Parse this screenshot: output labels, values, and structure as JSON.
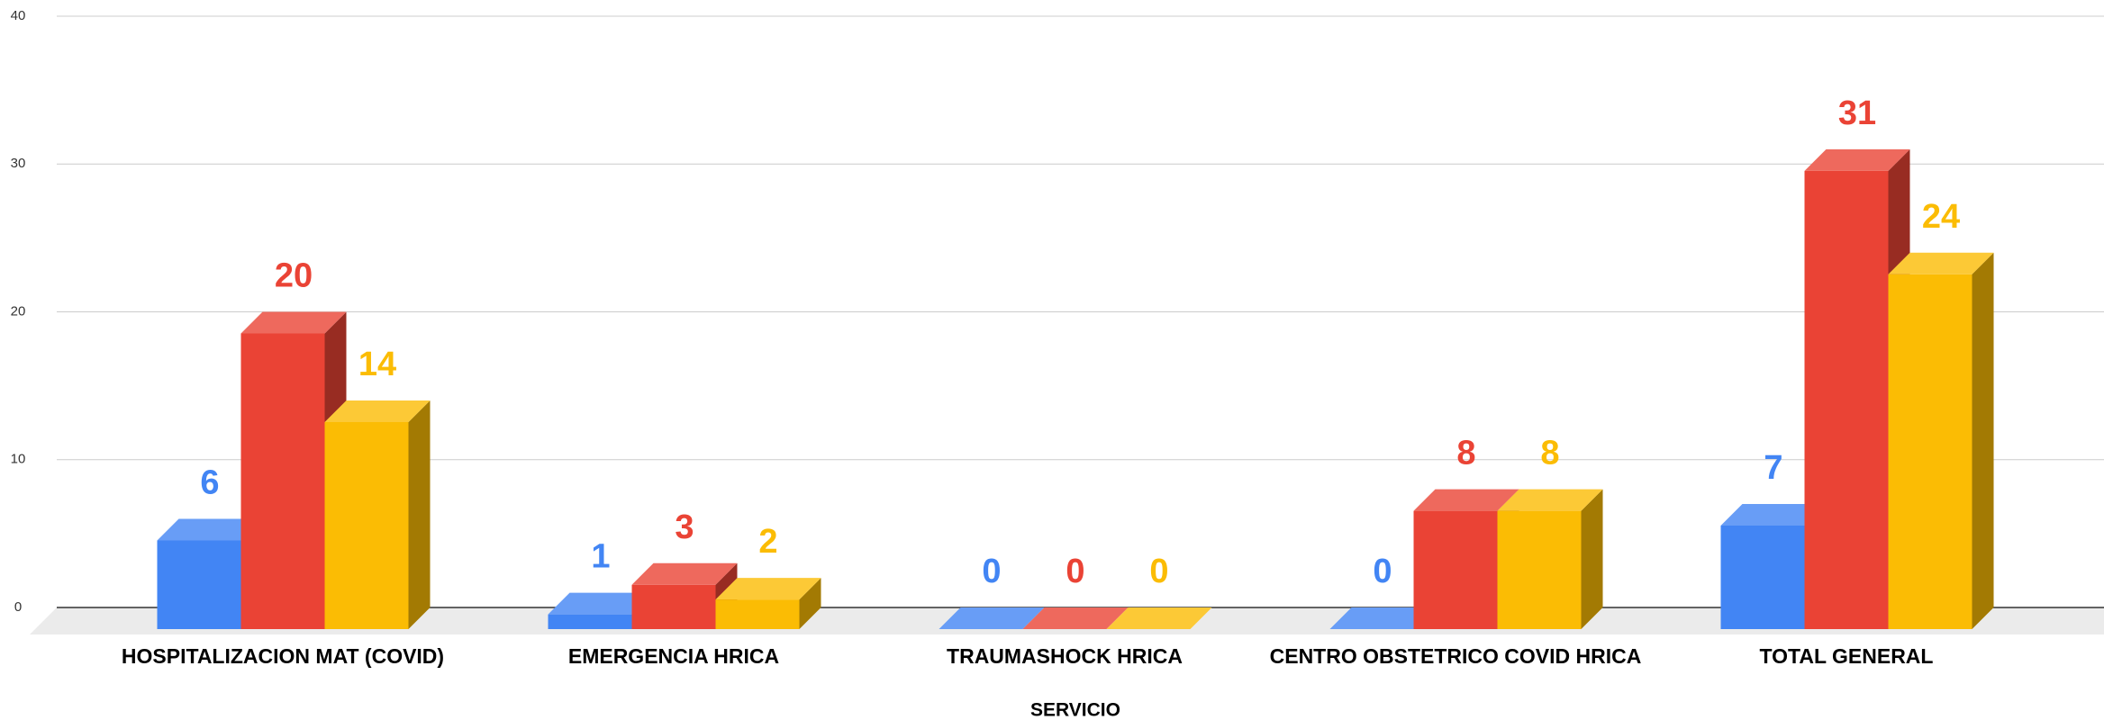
{
  "chart_data": {
    "type": "bar3d",
    "x_label": "SERVICIO",
    "categories": [
      "HOSPITALIZACION MAT (COVID)",
      "EMERGENCIA HRICA",
      "TRAUMASHOCK HRICA",
      "CENTRO OBSTETRICO COVID HRICA",
      "TOTAL GENERAL"
    ],
    "series": [
      {
        "color": "#4285f4",
        "values": [
          6,
          1,
          0,
          0,
          7
        ]
      },
      {
        "color": "#ea4335",
        "values": [
          20,
          3,
          0,
          8,
          31
        ]
      },
      {
        "color": "#fbbc04",
        "values": [
          14,
          2,
          0,
          8,
          24
        ]
      }
    ],
    "ylim": [
      0,
      40
    ],
    "yticks": [
      0,
      10,
      20,
      30,
      40
    ],
    "grid": true
  }
}
